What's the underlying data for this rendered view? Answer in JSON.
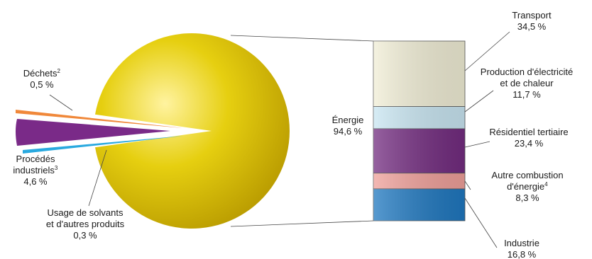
{
  "chart_data": [
    {
      "type": "pie",
      "slices": [
        {
          "label_lines": [
            "Énergie",
            "94,6 %"
          ],
          "value": 94.6,
          "color": "#d8c200"
        },
        {
          "label_lines": [
            "Déchets",
            "0,5 %"
          ],
          "sup": "2",
          "value": 0.5,
          "color": "#f0883a"
        },
        {
          "label_lines": [
            "Procédés",
            "industriels",
            "4,6 %"
          ],
          "sup": "3",
          "value": 4.6,
          "color": "#7a2a88"
        },
        {
          "label_lines": [
            "Usage de solvants",
            "et d'autres produits",
            "0,3 %"
          ],
          "value": 0.3,
          "color": "#29a9df"
        }
      ]
    },
    {
      "type": "bar",
      "stacked": true,
      "breakdown_of": "Énergie",
      "segments": [
        {
          "label_lines": [
            "Transport",
            "34,5 %"
          ],
          "value": 34.5,
          "color": "#f1eed6"
        },
        {
          "label_lines": [
            "Production d'électricité",
            "et de chaleur",
            "11,7 %"
          ],
          "value": 11.7,
          "color": "#c9e6f2"
        },
        {
          "label_lines": [
            "Résidentiel tertiaire",
            "23,4 %"
          ],
          "value": 23.4,
          "color": "#732c80"
        },
        {
          "label_lines": [
            "Autre combustion",
            "d'énergie",
            "8,3 %"
          ],
          "sup": "4",
          "value": 8.3,
          "color": "#f0a09a"
        },
        {
          "label_lines": [
            "Industrie",
            "16,8 %"
          ],
          "value": 16.8,
          "color": "#1f78c0"
        }
      ]
    }
  ]
}
